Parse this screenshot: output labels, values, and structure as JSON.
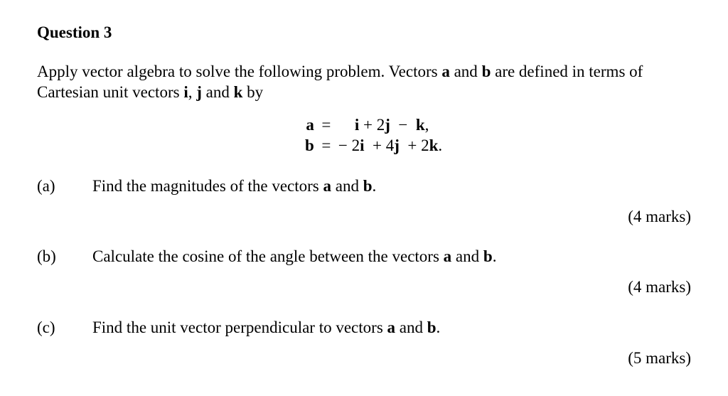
{
  "title": "Question 3",
  "intro_pre": "Apply vector algebra to solve the following problem. Vectors ",
  "intro_a": "a",
  "intro_mid1": " and ",
  "intro_b": "b",
  "intro_mid2": " are defined in terms of Cartesian unit vectors ",
  "intro_i": "i",
  "intro_c1": ", ",
  "intro_j": "j",
  "intro_c2": " and ",
  "intro_k": "k",
  "intro_post": " by",
  "eq": {
    "a_lhs": "a",
    "a_eq": "=",
    "a_rhs_1": "    ",
    "a_rhs_i": "i",
    "a_rhs_2": " + 2",
    "a_rhs_j": "j",
    "a_rhs_3": "  −  ",
    "a_rhs_k": "k",
    "a_rhs_4": ",",
    "b_lhs": "b",
    "b_eq": "=",
    "b_rhs_1": "− 2",
    "b_rhs_i": "i",
    "b_rhs_2": "  + 4",
    "b_rhs_j": "j",
    "b_rhs_3": "  + 2",
    "b_rhs_k": "k",
    "b_rhs_4": "."
  },
  "parts": {
    "a": {
      "label": "(a)",
      "t1": "Find the magnitudes of the vectors ",
      "va": "a",
      "t2": " and ",
      "vb": "b",
      "t3": ".",
      "marks": "(4 marks)"
    },
    "b": {
      "label": "(b)",
      "t1": "Calculate the cosine of the angle between the vectors ",
      "va": "a",
      "t2": " and ",
      "vb": "b",
      "t3": ".",
      "marks": "(4 marks)"
    },
    "c": {
      "label": "(c)",
      "t1": "Find the unit vector perpendicular to vectors ",
      "va": "a",
      "t2": " and ",
      "vb": "b",
      "t3": ".",
      "marks": "(5 marks)"
    }
  }
}
